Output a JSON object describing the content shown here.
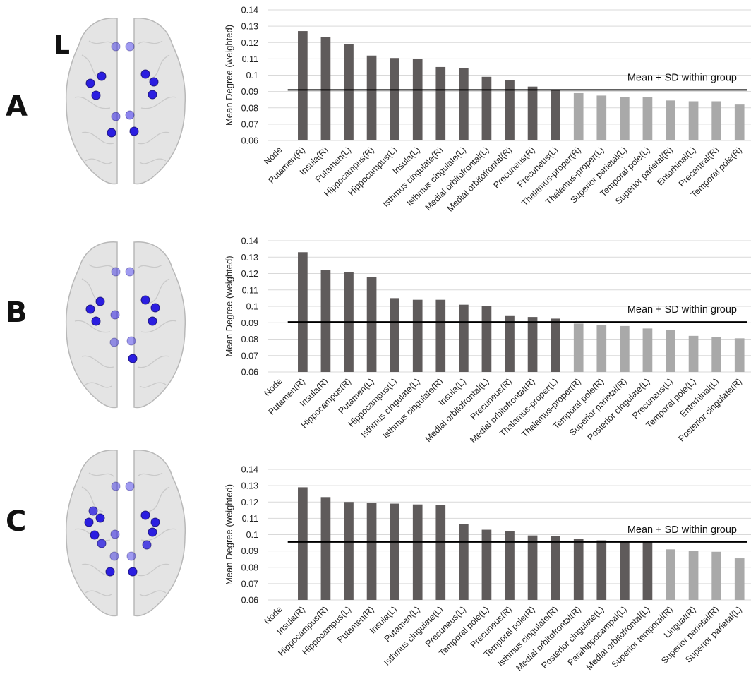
{
  "panels": [
    {
      "letter": "A",
      "show_hemisphere_label": true,
      "hemisphere_label": "L"
    },
    {
      "letter": "B",
      "show_hemisphere_label": false
    },
    {
      "letter": "C",
      "show_hemisphere_label": false
    }
  ],
  "colors": {
    "above": "#5f5b5b",
    "below": "#a9a9a9",
    "mean_line": "#000000",
    "grid": "#d9d9d9",
    "node_blue": "#2b1ee0"
  },
  "chart_data": [
    {
      "type": "bar",
      "panel": "A",
      "ylabel": "Mean Degree (weighted)",
      "xlabel": "Node",
      "ylim": [
        0.06,
        0.14
      ],
      "yticks": [
        "0.06",
        "0.07",
        "0.08",
        "0.09",
        "0.1",
        "0.11",
        "0.12",
        "0.13",
        "0.14"
      ],
      "grid": true,
      "categories": [
        "Putamen(R)",
        "Insula(R)",
        "Putamen(L)",
        "Hippocampus(R)",
        "Hippocampus(L)",
        "Insula(L)",
        "Isthmus cingulate(R)",
        "Isthmus cingulate(L)",
        "Medial orbitofrontal(L)",
        "Medial orbitofrontal(R)",
        "Precuneus(R)",
        "Precuneus(L)",
        "Thalamus-proper(R)",
        "Thalamus-proper(L)",
        "Superior parietal(L)",
        "Temporal pole(L)",
        "Superior parietal(R)",
        "Entorhinal(L)",
        "Precentral(R)",
        "Temporal pole(R)"
      ],
      "values": [
        0.127,
        0.1235,
        0.119,
        0.112,
        0.1105,
        0.11,
        0.105,
        0.1045,
        0.099,
        0.097,
        0.093,
        0.091,
        0.089,
        0.0875,
        0.0865,
        0.0865,
        0.0845,
        0.084,
        0.084,
        0.082
      ],
      "above_mean": [
        true,
        true,
        true,
        true,
        true,
        true,
        true,
        true,
        true,
        true,
        true,
        true,
        false,
        false,
        false,
        false,
        false,
        false,
        false,
        false
      ],
      "reference_line": {
        "value": 0.091,
        "label": "Mean + SD within group"
      }
    },
    {
      "type": "bar",
      "panel": "B",
      "ylabel": "Mean Degree (weighted)",
      "xlabel": "Node",
      "ylim": [
        0.06,
        0.14
      ],
      "yticks": [
        "0.06",
        "0.07",
        "0.08",
        "0.09",
        "0.1",
        "0.11",
        "0.12",
        "0.13",
        "0.14"
      ],
      "grid": true,
      "categories": [
        "Putamen(R)",
        "Insula(R)",
        "Hippocampus(R)",
        "Putamen(L)",
        "Hippocampus(L)",
        "Isthmus cingulate(L)",
        "Isthmus cingulate(R)",
        "Insula(L)",
        "Medial orbitofrontal(L)",
        "Precuneus(R)",
        "Medial orbitofrontal(R)",
        "Thalamus-proper(L)",
        "Thalamus-proper(R)",
        "Temporal pole(R)",
        "Superior parietal(R)",
        "Posterior cingulate(L)",
        "Precuneus(L)",
        "Temporal pole(L)",
        "Entorhinal(L)",
        "Posterior cingulate(R)"
      ],
      "values": [
        0.133,
        0.122,
        0.121,
        0.118,
        0.105,
        0.104,
        0.104,
        0.101,
        0.1,
        0.0945,
        0.0935,
        0.0925,
        0.0895,
        0.0885,
        0.088,
        0.0865,
        0.0855,
        0.082,
        0.0815,
        0.0805
      ],
      "above_mean": [
        true,
        true,
        true,
        true,
        true,
        true,
        true,
        true,
        true,
        true,
        true,
        true,
        false,
        false,
        false,
        false,
        false,
        false,
        false,
        false
      ],
      "reference_line": {
        "value": 0.0905,
        "label": "Mean + SD within group"
      }
    },
    {
      "type": "bar",
      "panel": "C",
      "ylabel": "Mean Degree (weighted)",
      "xlabel": "Node",
      "ylim": [
        0.06,
        0.14
      ],
      "yticks": [
        "0.06",
        "0.07",
        "0.08",
        "0.09",
        "0.1",
        "0.11",
        "0.12",
        "0.13",
        "0.14"
      ],
      "grid": true,
      "categories": [
        "Insula(R)",
        "Hippocampus(R)",
        "Hippocampus(L)",
        "Putamen(R)",
        "Insula(L)",
        "Putamen(L)",
        "Isthmus cingulate(L)",
        "Precuneus(L)",
        "Temporal pole(L)",
        "Precuneus(R)",
        "Temporal pole(R)",
        "Isthmus cingulate(R)",
        "Medial orbitofrontal(R)",
        "Posterior cingulate(L)",
        "Parahippocampal(L)",
        "Medial orbitofrontal(L)",
        "Superior temporal(R)",
        "Lingual(R)",
        "Superior parietal(R)",
        "Superior parietal(L)"
      ],
      "values": [
        0.129,
        0.123,
        0.12,
        0.1195,
        0.119,
        0.1185,
        0.118,
        0.1065,
        0.103,
        0.102,
        0.0995,
        0.099,
        0.0975,
        0.0965,
        0.096,
        0.0955,
        0.091,
        0.09,
        0.0895,
        0.0855
      ],
      "above_mean": [
        true,
        true,
        true,
        true,
        true,
        true,
        true,
        true,
        true,
        true,
        true,
        true,
        true,
        true,
        true,
        true,
        false,
        false,
        false,
        false
      ],
      "reference_line": {
        "value": 0.0955,
        "label": "Mean + SD within group"
      }
    }
  ]
}
